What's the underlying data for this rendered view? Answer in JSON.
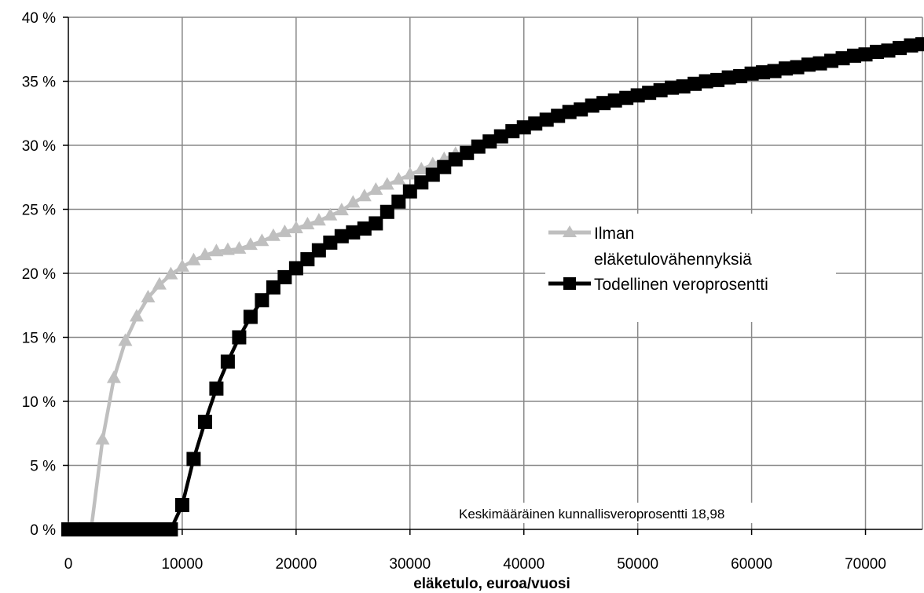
{
  "chart_data": {
    "type": "line",
    "title": "",
    "xlabel": "eläketulo, euroa/vuosi",
    "ylabel": "",
    "xlim": [
      0,
      75000
    ],
    "ylim": [
      0,
      40
    ],
    "grid": true,
    "legend_position": "right",
    "x_ticks": [
      "0",
      "10000",
      "20000",
      "30000",
      "40000",
      "50000",
      "60000",
      "70000"
    ],
    "y_ticks": [
      "0 %",
      "5 %",
      "10 %",
      "15 %",
      "20 %",
      "25 %",
      "30 %",
      "35 %",
      "40 %"
    ],
    "annotation": "Keskimääräinen kunnallisveroprosentti 18,98",
    "legend": {
      "line1": "Ilman",
      "line2": "eläketulovähennyksiä",
      "line3": "Todellinen veroprosentti"
    },
    "series": [
      {
        "name": "Ilman eläketulovähennyksiä",
        "color": "#bfbfbf",
        "marker": "triangle",
        "x": [
          0,
          1000,
          2000,
          3000,
          4000,
          5000,
          6000,
          7000,
          8000,
          9000,
          10000,
          11000,
          12000,
          13000,
          14000,
          15000,
          16000,
          17000,
          18000,
          19000,
          20000,
          21000,
          22000,
          23000,
          24000,
          25000,
          26000,
          27000,
          28000,
          29000,
          30000,
          31000,
          32000,
          33000,
          34000
        ],
        "values": [
          0,
          0,
          0,
          7,
          11.8,
          14.7,
          16.6,
          18.1,
          19.1,
          19.9,
          20.5,
          21.0,
          21.4,
          21.7,
          21.8,
          21.9,
          22.2,
          22.5,
          22.9,
          23.2,
          23.5,
          23.8,
          24.1,
          24.5,
          24.9,
          25.5,
          26.0,
          26.5,
          26.9,
          27.3,
          27.7,
          28.1,
          28.5,
          28.9,
          29.3
        ]
      },
      {
        "name": "Todellinen veroprosentti",
        "color": "#000000",
        "marker": "square",
        "x": [
          0,
          1000,
          2000,
          3000,
          4000,
          5000,
          6000,
          7000,
          8000,
          9000,
          10000,
          11000,
          12000,
          13000,
          14000,
          15000,
          16000,
          17000,
          18000,
          19000,
          20000,
          21000,
          22000,
          23000,
          24000,
          25000,
          26000,
          27000,
          28000,
          29000,
          30000,
          31000,
          32000,
          33000,
          34000,
          35000,
          36000,
          37000,
          38000,
          39000,
          40000,
          41000,
          42000,
          43000,
          44000,
          45000,
          46000,
          47000,
          48000,
          49000,
          50000,
          51000,
          52000,
          53000,
          54000,
          55000,
          56000,
          57000,
          58000,
          59000,
          60000,
          61000,
          62000,
          63000,
          64000,
          65000,
          66000,
          67000,
          68000,
          69000,
          70000,
          71000,
          72000,
          73000,
          74000,
          75000
        ],
        "values": [
          0,
          0,
          0,
          0,
          0,
          0,
          0,
          0,
          0,
          0,
          1.9,
          5.5,
          8.4,
          11.0,
          13.1,
          15.0,
          16.6,
          17.9,
          18.9,
          19.7,
          20.4,
          21.1,
          21.8,
          22.4,
          22.9,
          23.2,
          23.5,
          23.9,
          24.8,
          25.6,
          26.4,
          27.1,
          27.7,
          28.3,
          28.9,
          29.4,
          29.9,
          30.3,
          30.7,
          31.1,
          31.4,
          31.7,
          32.0,
          32.3,
          32.6,
          32.8,
          33.1,
          33.3,
          33.5,
          33.7,
          33.9,
          34.1,
          34.3,
          34.5,
          34.6,
          34.8,
          35.0,
          35.1,
          35.3,
          35.4,
          35.6,
          35.7,
          35.8,
          36.0,
          36.1,
          36.3,
          36.4,
          36.6,
          36.8,
          37.0,
          37.1,
          37.3,
          37.4,
          37.6,
          37.8,
          37.9
        ]
      }
    ]
  }
}
